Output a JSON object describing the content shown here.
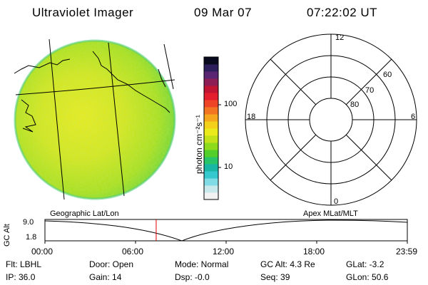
{
  "header": {
    "instrument": "Ultraviolet Imager",
    "date": "09 Mar 07",
    "time": "07:22:02 UT"
  },
  "colorbar": {
    "unit_label": "photon cm⁻²s⁻¹",
    "ticks": [
      "100",
      "10"
    ],
    "colors": [
      "#f2f2f2",
      "#c8e8ee",
      "#7fdbe6",
      "#35c8cf",
      "#19b6a6",
      "#27c46a",
      "#52cf2a",
      "#8edb1d",
      "#c4e21a",
      "#eaea1c",
      "#f3d11b",
      "#f4a61d",
      "#f27621",
      "#ee4526",
      "#e41d2f",
      "#bf1532",
      "#8c1d55",
      "#5a2472",
      "#2c1e5b",
      "#0a0a1e"
    ]
  },
  "polar_plot": {
    "mlt_labels": {
      "top": "12",
      "left": "18",
      "right": "6",
      "bottom": "0"
    },
    "lat_labels": [
      "60",
      "70",
      "80"
    ]
  },
  "timeline": {
    "left_label": "Geographic Lat/Lon",
    "right_label": "Apex  MLat/MLT",
    "y_axis_label": "GC Alt",
    "y_max": "9.0",
    "y_min": "1.8",
    "x_ticks": [
      "00:00",
      "06:00",
      "12:00",
      "18:00",
      "23:59"
    ],
    "current_marker_hours": 7.367,
    "current_marker_color": "#e00000"
  },
  "status": {
    "flt": "Flt: LBHL",
    "ip": "IP: 36.0",
    "door": "Door: Open",
    "gain": "Gain: 14",
    "mode": "Mode: Normal",
    "dsp": "Dsp:    -0.0",
    "gc_alt": "GC Alt: 4.3 Re",
    "seq": "Seq: 39",
    "glat": "GLat:   -3.2",
    "glon": "GLon:  50.6"
  }
}
